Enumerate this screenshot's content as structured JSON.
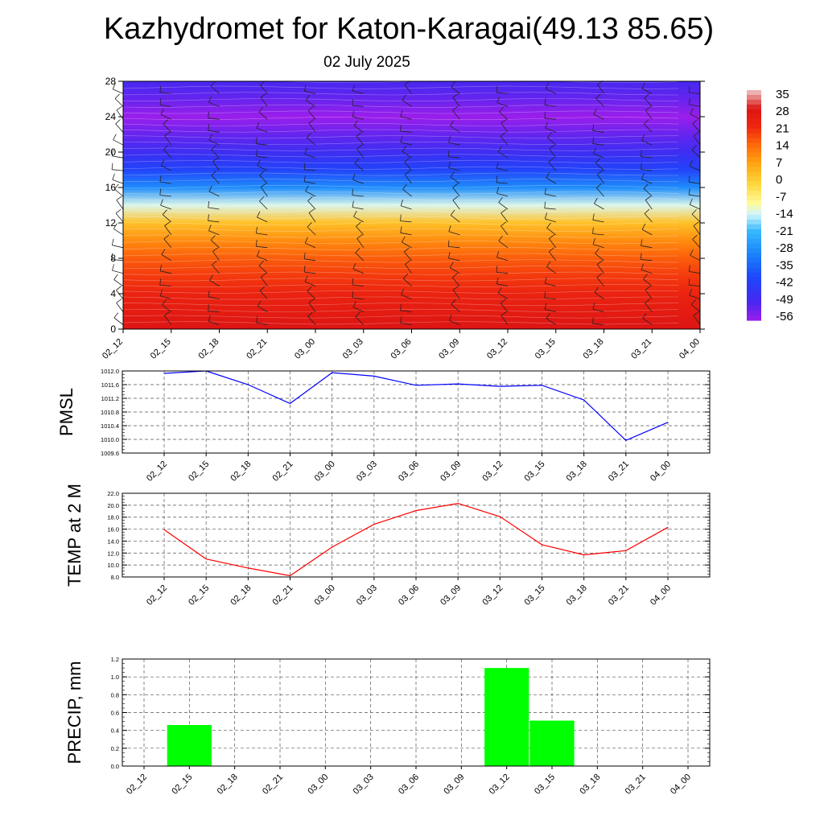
{
  "header": {
    "title": "Kazhydromet for Katon-Karagai(49.13 85.65)",
    "subtitle": "02 July 2025"
  },
  "chart_data": [
    {
      "type": "heatmap",
      "title": "",
      "x_ticks": [
        "02_12",
        "02_15",
        "02_18",
        "02_21",
        "03_00",
        "03_03",
        "03_06",
        "03_09",
        "03_12",
        "03_15",
        "03_18",
        "03_21",
        "04_00"
      ],
      "y_ticks": [
        "0",
        "4",
        "8",
        "12",
        "16",
        "20",
        "24",
        "28"
      ],
      "ylim": [
        0,
        28
      ],
      "colorbar": {
        "labels": [
          "35",
          "28",
          "21",
          "14",
          "7",
          "0",
          "-7",
          "-14",
          "-21",
          "-28",
          "-35",
          "-42",
          "-49",
          "-56"
        ],
        "range": [
          -60,
          38
        ]
      },
      "temperature_profile": {
        "levels": [
          0,
          2,
          4,
          6,
          8,
          10,
          12,
          14,
          16,
          18,
          20,
          22,
          24,
          26,
          28
        ],
        "temperature_c": [
          30,
          27,
          24,
          20,
          16,
          10,
          2,
          -14,
          -30,
          -43,
          -50,
          -55,
          -60,
          -55,
          -52
        ]
      },
      "layers": [
        "filled contours",
        "wind barbs"
      ]
    },
    {
      "type": "line",
      "ylabel": "PMSL",
      "x": [
        "02_12",
        "02_15",
        "02_18",
        "02_21",
        "03_00",
        "03_03",
        "03_06",
        "03_09",
        "03_12",
        "03_15",
        "03_18",
        "03_21",
        "04_00"
      ],
      "series": [
        {
          "values": [
            1011.93,
            1012.0,
            1011.6,
            1011.05,
            1011.95,
            1011.85,
            1011.58,
            1011.62,
            1011.55,
            1011.58,
            1011.15,
            1009.97,
            1010.5
          ],
          "color": "#0000ff"
        }
      ],
      "ylim": [
        1009.6,
        1012.0
      ],
      "yticks": [
        "1012.0",
        "1011.6",
        "1011.2",
        "1010.8",
        "1010.4",
        "1010.0",
        "1009.6"
      ],
      "grid": true
    },
    {
      "type": "line",
      "ylabel": "TEMP at 2 M",
      "x": [
        "02_12",
        "02_15",
        "02_18",
        "02_21",
        "03_00",
        "03_03",
        "03_06",
        "03_09",
        "03_12",
        "03_15",
        "03_18",
        "03_21",
        "04_00"
      ],
      "series": [
        {
          "values": [
            15.9,
            11.0,
            9.5,
            8.2,
            13.0,
            16.8,
            19.1,
            20.3,
            18.1,
            13.4,
            11.7,
            12.4,
            16.3
          ],
          "color": "#ff0000"
        }
      ],
      "ylim": [
        8.0,
        22.0
      ],
      "yticks": [
        "22.0",
        "20.0",
        "18.0",
        "16.0",
        "14.0",
        "12.0",
        "10.0",
        "8.0"
      ],
      "grid": true
    },
    {
      "type": "bar",
      "ylabel": "PRECIP, mm",
      "categories": [
        "02_12",
        "02_15",
        "02_18",
        "02_21",
        "03_00",
        "03_03",
        "03_06",
        "03_09",
        "03_12",
        "03_15",
        "03_18",
        "03_21",
        "04_00"
      ],
      "values": [
        0,
        0.46,
        0,
        0,
        0,
        0,
        0,
        0,
        1.1,
        0.51,
        0,
        0,
        0
      ],
      "ylim": [
        0.0,
        1.2
      ],
      "yticks": [
        "1.2",
        "1.0",
        "0.8",
        "0.6",
        "0.4",
        "0.2",
        "0.0"
      ],
      "color": "#00ff00",
      "grid": true
    }
  ]
}
